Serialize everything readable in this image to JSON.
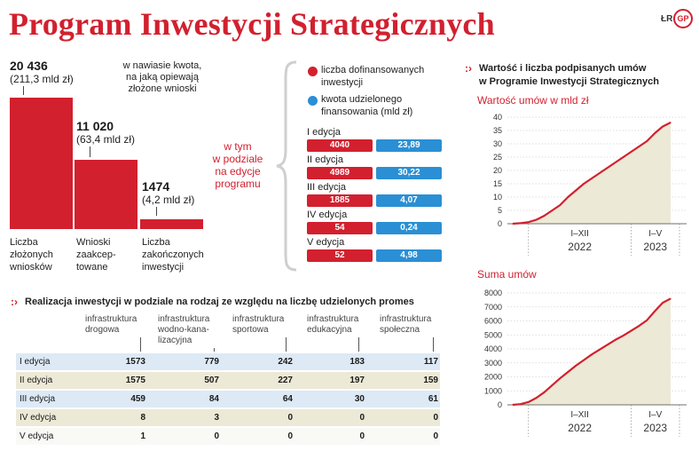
{
  "title": "Program Inwestycji Strategicznych",
  "brand": {
    "small": "ŁR",
    "logo": "GP"
  },
  "funnel": {
    "items": [
      {
        "value": "20 436",
        "amount": "(211,3 mld zł)",
        "label_lines": [
          "Liczba",
          "złożonych",
          "wniosków"
        ],
        "count": 20436
      },
      {
        "value": "11 020",
        "amount": "(63,4 mld zł)",
        "label_lines": [
          "Wnioski",
          "zaakcep-",
          "towane"
        ],
        "count": 11020
      },
      {
        "value": "1474",
        "amount": "(4,2 mld zł)",
        "label_lines": [
          "Liczba",
          "zakończonych",
          "inwestycji"
        ],
        "count": 1474
      }
    ],
    "note_lines": [
      "w nawiasie kwota,",
      "na jaką opiewają",
      "złożone wnioski"
    ]
  },
  "editions_note_lines": [
    "w tym",
    "w podziale",
    "na edycje",
    "programu"
  ],
  "legend": {
    "red_lines": [
      "liczba dofinansowanych",
      "inwestycji"
    ],
    "blue_lines": [
      "kwota udzielonego",
      "finansowania (mld zł)"
    ],
    "red_color": "#d2202f",
    "blue_color": "#2a8fd4"
  },
  "editions": [
    {
      "label": "I edycja",
      "count": "4040",
      "amount": "23,89"
    },
    {
      "label": "II edycja",
      "count": "4989",
      "amount": "30,22"
    },
    {
      "label": "III edycja",
      "count": "1885",
      "amount": "4,07"
    },
    {
      "label": "IV edycja",
      "count": "54",
      "amount": "0,24"
    },
    {
      "label": "V edycja",
      "count": "52",
      "amount": "4,98"
    }
  ],
  "table": {
    "heading": "Realizacja inwestycji w podziale na rodzaj ze względu na liczbę udzielonych promes",
    "columns": [
      [
        "infrastruktura",
        "drogowa"
      ],
      [
        "infrastruktura",
        "wodno-kana-",
        "lizacyjna"
      ],
      [
        "infrastruktura",
        "sportowa"
      ],
      [
        "infrastruktura",
        "edukacyjna"
      ],
      [
        "infrastruktura",
        "społeczna"
      ]
    ],
    "rows": [
      {
        "label": "I edycja",
        "values": [
          "1573",
          "779",
          "242",
          "183",
          "117"
        ]
      },
      {
        "label": "II edycja",
        "values": [
          "1575",
          "507",
          "227",
          "197",
          "159"
        ]
      },
      {
        "label": "III edycja",
        "values": [
          "459",
          "84",
          "64",
          "30",
          "61"
        ]
      },
      {
        "label": "IV edycja",
        "values": [
          "8",
          "3",
          "0",
          "0",
          "0"
        ]
      },
      {
        "label": "V edycja",
        "values": [
          "1",
          "0",
          "0",
          "0",
          "0"
        ]
      }
    ]
  },
  "right_heading_lines": [
    "Wartość i liczba podpisanych umów",
    "w Programie Inwestycji Strategicznych"
  ],
  "chart_data": [
    {
      "type": "area",
      "title": "Wartość umów w mld zł",
      "ylim": [
        0,
        40
      ],
      "yticks": [
        0,
        5,
        10,
        15,
        20,
        25,
        30,
        35,
        40
      ],
      "x_labels": [
        {
          "label": "I–XII",
          "year": "2022"
        },
        {
          "label": "I–V",
          "year": "2023"
        }
      ],
      "values": [
        0,
        0.2,
        0.6,
        1.5,
        3,
        5,
        7,
        10,
        12.5,
        15,
        17,
        19,
        21,
        23,
        25,
        27,
        29,
        31,
        34,
        36.5,
        38
      ]
    },
    {
      "type": "area",
      "title": "Suma umów",
      "ylim": [
        0,
        8000
      ],
      "yticks": [
        0,
        1000,
        2000,
        3000,
        4000,
        5000,
        6000,
        7000,
        8000
      ],
      "x_labels": [
        {
          "label": "I–XII",
          "year": "2022"
        },
        {
          "label": "I–V",
          "year": "2023"
        }
      ],
      "values": [
        0,
        50,
        200,
        500,
        900,
        1400,
        1900,
        2350,
        2800,
        3200,
        3600,
        3950,
        4300,
        4650,
        4950,
        5300,
        5650,
        6050,
        6700,
        7300,
        7600
      ]
    }
  ]
}
